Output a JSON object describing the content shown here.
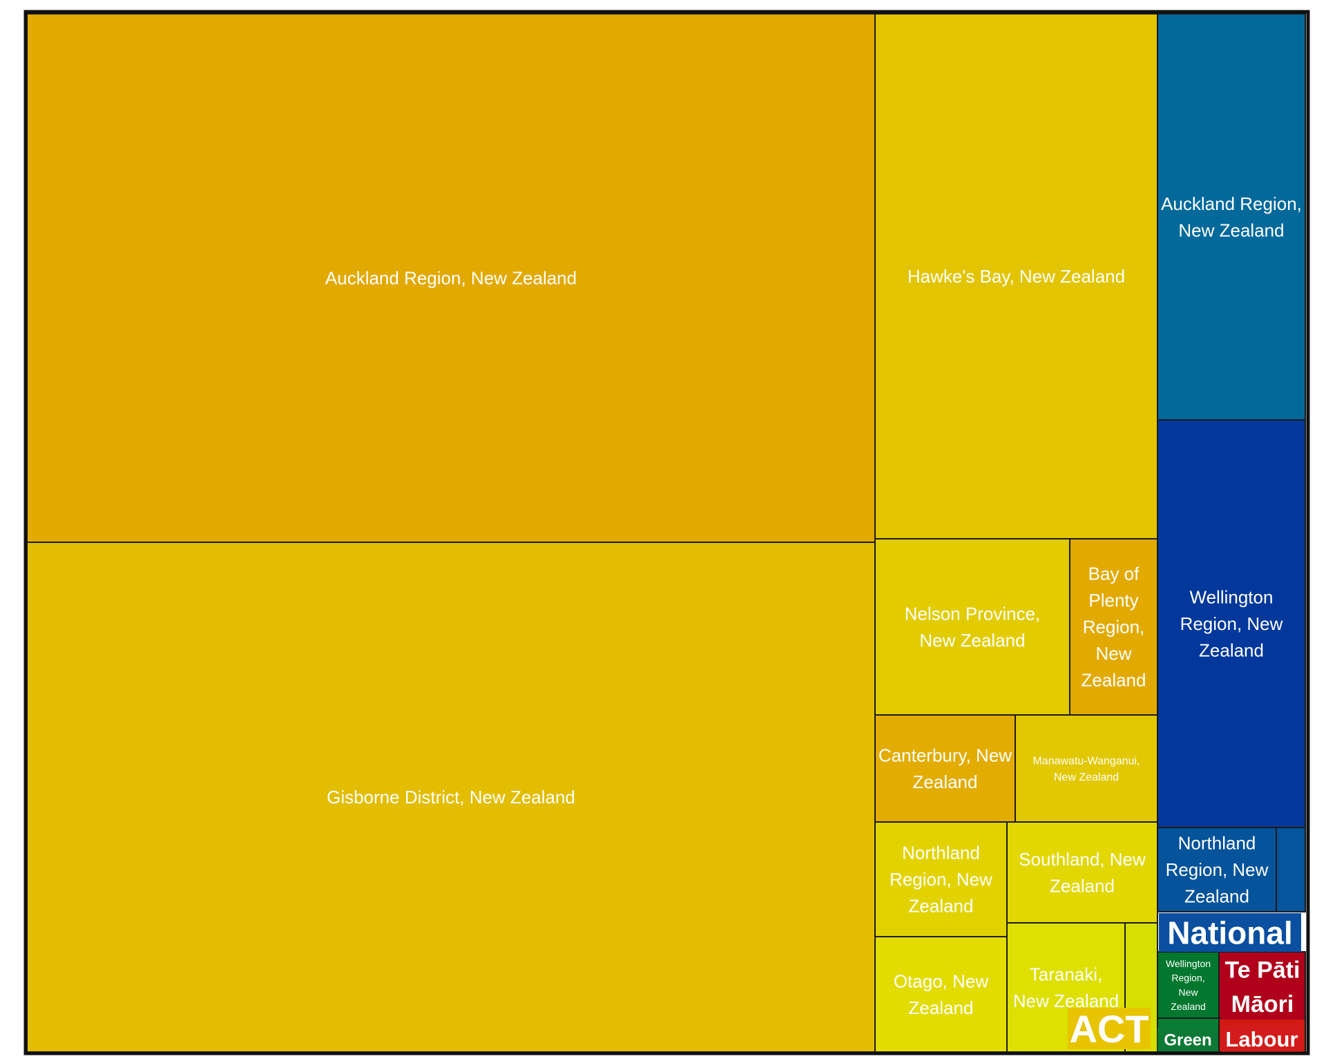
{
  "chart_data": {
    "type": "treemap",
    "title": "",
    "parties": [
      {
        "name": "ACT",
        "color": "#e8c400",
        "regions": [
          {
            "label": "Auckland Region, New Zealand",
            "value": 27,
            "color": "#e2a900"
          },
          {
            "label": "Gisborne District, New Zealand",
            "value": 27,
            "color": "#e2bd00"
          },
          {
            "label": "Hawke's Bay, New Zealand",
            "value": 9,
            "color": "#e2c500"
          },
          {
            "label": "Nelson Province, New Zealand",
            "value": 2.1,
            "color": "#e2cc00"
          },
          {
            "label": "Bay of Plenty Region, New Zealand",
            "value": 0.9,
            "color": "#e2aa00"
          },
          {
            "label": "Canterbury, New Zealand",
            "value": 1.1,
            "color": "#e2ac00"
          },
          {
            "label": "Manawatu-Wanganui, New Zealand",
            "value": 1.3,
            "color": "#e2c800"
          },
          {
            "label": "Northland Region, New Zealand",
            "value": 1.0,
            "color": "#e2d300"
          },
          {
            "label": "Southland, New Zealand",
            "value": 1.0,
            "color": "#e2d700"
          },
          {
            "label": "Otago, New Zealand",
            "value": 1.0,
            "color": "#e2dc00"
          },
          {
            "label": "Taranaki, New Zealand",
            "value": 0.85,
            "color": "#dde000"
          },
          {
            "label": "",
            "value": 0.15,
            "color": "#d5e000"
          }
        ]
      },
      {
        "name": "National",
        "color": "#0a4fa0",
        "regions": [
          {
            "label": "Auckland Region, New Zealand",
            "value": 4.5,
            "color": "#03699b"
          },
          {
            "label": "Wellington Region, New Zealand",
            "value": 4.5,
            "color": "#02389b"
          },
          {
            "label": "Northland Region, New Zealand",
            "value": 0.8,
            "color": "#04539b"
          },
          {
            "label": "",
            "value": 0.2,
            "color": "#04559b"
          }
        ]
      },
      {
        "name": "Te Pāti Māori",
        "color": "#b0001a",
        "regions": [
          {
            "label": "",
            "value": 0.6,
            "color": "#b20022"
          }
        ]
      },
      {
        "name": "Green",
        "color": "#0c7a35",
        "regions": [
          {
            "label": "Wellington Region, New Zealand",
            "value": 0.5,
            "color": "#04772e"
          },
          {
            "label": "",
            "value": 0.1,
            "color": "#067e33"
          }
        ]
      },
      {
        "name": "Labour",
        "color": "#d41b1b",
        "regions": [
          {
            "label": "",
            "value": 0.2,
            "color": "#d01a12"
          }
        ]
      }
    ]
  }
}
